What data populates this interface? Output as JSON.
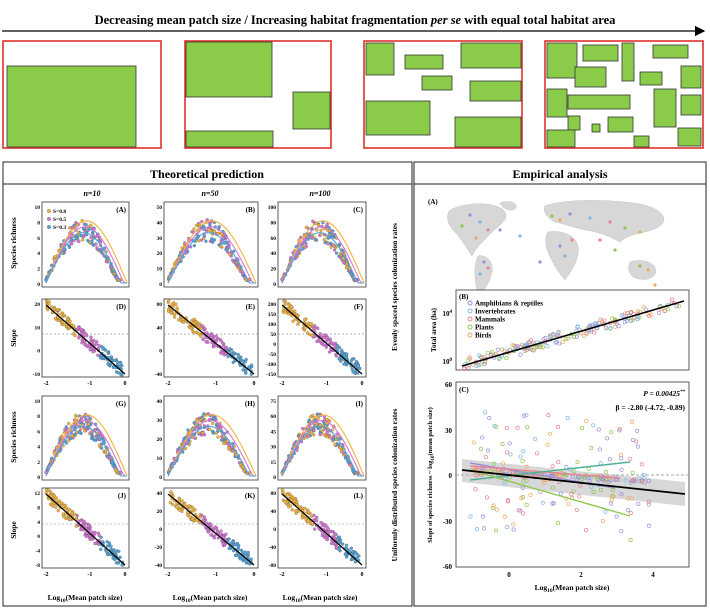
{
  "header": {
    "title_parts": [
      "Decreasing mean patch size / Increasing habitat fragmentation ",
      "per se",
      " with equal total habitat area"
    ]
  },
  "colors": {
    "habitat": "#8bcb4a",
    "frame": "#e0312b",
    "theory_border": "#222222",
    "s08": "#f3b23a",
    "s05": "#d873d8",
    "s03": "#4fa3d9",
    "regression": "#000000",
    "amphibians": "#9b8fd6",
    "invertebrates": "#7fb6e3",
    "mammals": "#e8848f",
    "plants": "#8ec74f",
    "birds": "#f0a860"
  },
  "theory": {
    "title": "Theoretical prediction",
    "n_labels": [
      "n=10",
      "n=50",
      "n=100"
    ],
    "row_labels": [
      "Species richness",
      "Slope",
      "Species richness",
      "Slope"
    ],
    "side_labels": [
      "Evenly spaced species colonization rates",
      "Uniformly distributed species colonization rates"
    ],
    "x_label_main": "Log",
    "x_label_sub": "10",
    "x_label_rest": "(Mean patch size)",
    "x_ticks": [
      "-2",
      "-1",
      "0"
    ],
    "legend": [
      "S=0.8",
      "S=0.5",
      "S=0.3"
    ],
    "panels": [
      {
        "letter": "(A)",
        "ticks": [
          "0",
          "2",
          "4",
          "6",
          "8",
          "10"
        ]
      },
      {
        "letter": "(B)",
        "ticks": [
          "0",
          "10",
          "20",
          "30",
          "40",
          "50"
        ]
      },
      {
        "letter": "(C)",
        "ticks": [
          "0",
          "20",
          "40",
          "60",
          "80",
          "100"
        ]
      },
      {
        "letter": "(D)",
        "ticks": [
          "-10",
          "0",
          "10",
          "20"
        ]
      },
      {
        "letter": "(E)",
        "ticks": [
          "-40",
          "0",
          "40",
          "80"
        ]
      },
      {
        "letter": "(F)",
        "ticks": [
          "-150",
          "-100",
          "-50",
          "0",
          "50",
          "100",
          "150",
          "200"
        ]
      },
      {
        "letter": "(G)",
        "ticks": [
          "0",
          "2",
          "4",
          "6",
          "8",
          "10"
        ]
      },
      {
        "letter": "(H)",
        "ticks": [
          "0",
          "10",
          "20",
          "30",
          "40"
        ]
      },
      {
        "letter": "(I)",
        "ticks": [
          "0",
          "15",
          "30",
          "45",
          "60",
          "75"
        ]
      },
      {
        "letter": "(J)",
        "ticks": [
          "-8",
          "-4",
          "0",
          "4",
          "8",
          "12"
        ]
      },
      {
        "letter": "(K)",
        "ticks": [
          "-40",
          "-20",
          "0",
          "20",
          "40"
        ]
      },
      {
        "letter": "(L)",
        "ticks": [
          "-80",
          "-40",
          "0",
          "40",
          "80"
        ]
      }
    ]
  },
  "empirical": {
    "title": "Empirical analysis",
    "map_letter": "(A)",
    "panel_b": {
      "letter": "(B)",
      "ylabel": "Total area (ha)",
      "yticks": [
        "10",
        "10"
      ],
      "ytick_exp": [
        "4",
        "0"
      ],
      "legend": [
        "Amphibians & reptiles",
        "Invertebrates",
        "Mammals",
        "Plants",
        "Birds"
      ]
    },
    "panel_c": {
      "letter": "(C)",
      "ylabel_main": "Slope of species richness ~ log",
      "ylabel_sub": "10",
      "ylabel_rest": "(mean patch size)",
      "yticks": [
        "60",
        "30",
        "0",
        "-30",
        "-60"
      ],
      "xticks": [
        "0",
        "2",
        "4"
      ],
      "xlabel_main": "Log",
      "xlabel_sub": "10",
      "xlabel_rest": "(Mean patch size)",
      "p_text": "P = 0.00425",
      "p_stars": "**",
      "beta_text": "β = -2.80 (-4.72, -0.89)"
    }
  }
}
